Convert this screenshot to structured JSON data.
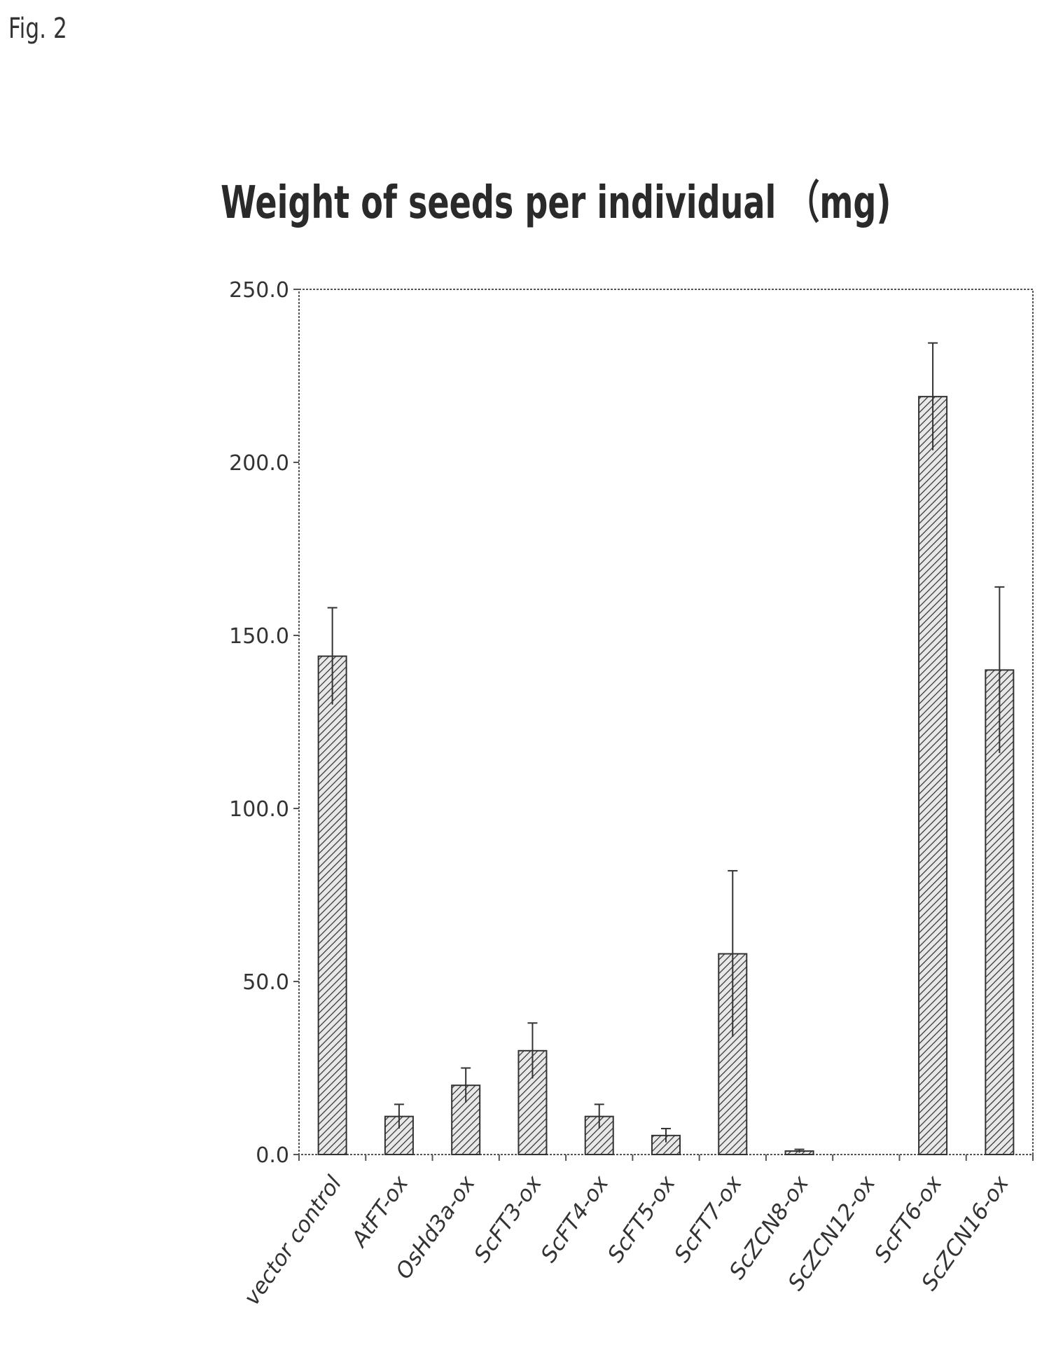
{
  "figure_label": "Fig. 2",
  "chart_data": {
    "type": "bar",
    "title": "Weight of seeds per individual （mg)",
    "xlabel": "",
    "ylabel": "",
    "ylim": [
      0,
      250
    ],
    "yticks": [
      "0.0",
      "50.0",
      "100.0",
      "150.0",
      "200.0",
      "250.0"
    ],
    "grid": false,
    "categories": [
      "vector control",
      "AtFT-ox",
      "OsHd3a-ox",
      "ScFT3-ox",
      "ScFT4-ox",
      "ScFT5-ox",
      "ScFT7-ox",
      "ScZCN8-ox",
      "ScZCN12-ox",
      "ScFT6-ox",
      "ScZCN16-ox"
    ],
    "values": [
      144,
      11,
      20,
      30,
      11,
      5.5,
      58,
      1,
      0,
      219,
      140
    ],
    "errors": [
      14,
      3.5,
      5,
      8,
      3.5,
      2,
      24,
      0.5,
      0,
      15.5,
      24
    ],
    "bar_color": "#e8e8e8",
    "hatch_color": "#333333"
  }
}
